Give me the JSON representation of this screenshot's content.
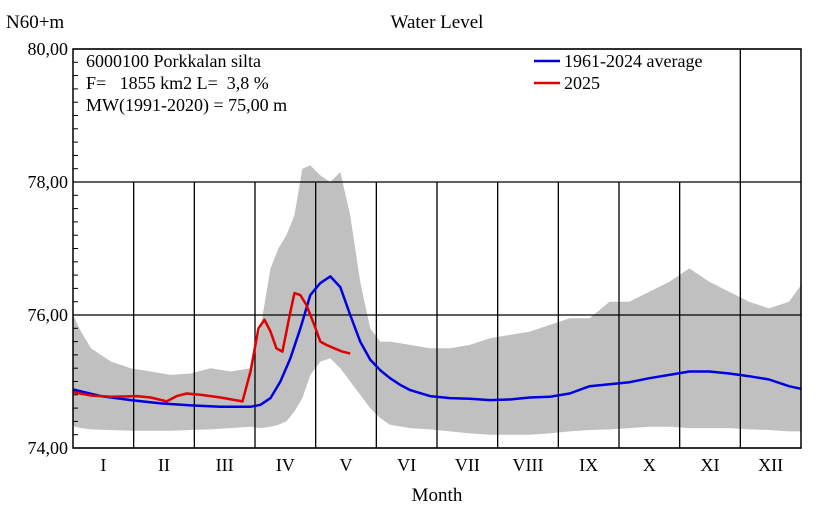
{
  "chart_data": {
    "type": "line",
    "title": "Water Level",
    "ylabel": "N60+m",
    "xlabel": "Month",
    "ylim": [
      74,
      80
    ],
    "y_ticks": [
      "74,00",
      "76,00",
      "78,00",
      "80,00"
    ],
    "months": [
      "I",
      "II",
      "III",
      "IV",
      "V",
      "VI",
      "VII",
      "VIII",
      "IX",
      "X",
      "XI",
      "XII"
    ],
    "x_unit": "day of year",
    "xlim": [
      1,
      366
    ],
    "info": [
      "6000100 Porkkalan silta",
      "F=   1855 km2 L=  3,8 %",
      "MW(1991-2020) = 75,00 m"
    ],
    "legend_position": "top-right",
    "colors": {
      "average": "#0000e0",
      "current": "#e00000",
      "range": "#c0c0c0"
    },
    "series": [
      {
        "name": "1961-2024 average",
        "x": [
          1,
          15,
          30,
          45,
          60,
          75,
          90,
          95,
          100,
          105,
          110,
          115,
          120,
          125,
          130,
          135,
          140,
          145,
          150,
          155,
          160,
          165,
          170,
          180,
          190,
          200,
          210,
          220,
          230,
          240,
          250,
          260,
          270,
          280,
          290,
          300,
          310,
          320,
          330,
          340,
          350,
          360,
          366
        ],
        "y": [
          74.88,
          74.78,
          74.72,
          74.67,
          74.64,
          74.62,
          74.62,
          74.65,
          74.75,
          75.0,
          75.35,
          75.8,
          76.3,
          76.48,
          76.58,
          76.42,
          76.0,
          75.6,
          75.33,
          75.17,
          75.05,
          74.95,
          74.87,
          74.78,
          74.75,
          74.74,
          74.72,
          74.73,
          74.76,
          74.77,
          74.82,
          74.93,
          74.96,
          74.99,
          75.05,
          75.1,
          75.15,
          75.15,
          75.12,
          75.08,
          75.03,
          74.93,
          74.89
        ]
      },
      {
        "name": "2025",
        "x": [
          1,
          10,
          20,
          33,
          40,
          48,
          53,
          58,
          65,
          75,
          86,
          90,
          94,
          97,
          100,
          103,
          106,
          110,
          112,
          115,
          118,
          122,
          125,
          128,
          132,
          136,
          140
        ],
        "y": [
          74.84,
          74.79,
          74.77,
          74.78,
          74.76,
          74.7,
          74.78,
          74.82,
          74.8,
          74.76,
          74.7,
          75.15,
          75.8,
          75.93,
          75.75,
          75.5,
          75.45,
          76.05,
          76.33,
          76.3,
          76.15,
          75.85,
          75.6,
          75.55,
          75.5,
          75.45,
          75.42
        ]
      }
    ],
    "range_band": {
      "x": [
        1,
        5,
        10,
        20,
        30,
        40,
        50,
        60,
        70,
        80,
        90,
        95,
        100,
        104,
        108,
        112,
        116,
        120,
        125,
        130,
        135,
        140,
        145,
        150,
        155,
        160,
        170,
        180,
        190,
        200,
        210,
        220,
        230,
        240,
        250,
        260,
        270,
        280,
        290,
        300,
        310,
        320,
        330,
        340,
        350,
        360,
        366
      ],
      "min": [
        74.33,
        74.3,
        74.28,
        74.27,
        74.26,
        74.26,
        74.26,
        74.27,
        74.28,
        74.3,
        74.32,
        74.3,
        74.32,
        74.35,
        74.4,
        74.55,
        74.75,
        75.1,
        75.3,
        75.35,
        75.2,
        75.0,
        74.8,
        74.6,
        74.45,
        74.35,
        74.3,
        74.28,
        74.25,
        74.22,
        74.2,
        74.2,
        74.2,
        74.22,
        74.25,
        74.27,
        74.28,
        74.3,
        74.32,
        74.32,
        74.3,
        74.3,
        74.3,
        74.28,
        74.27,
        74.25,
        74.25
      ],
      "max": [
        76.0,
        75.75,
        75.5,
        75.3,
        75.2,
        75.15,
        75.1,
        75.12,
        75.2,
        75.15,
        75.2,
        75.8,
        76.7,
        77.0,
        77.2,
        77.5,
        78.2,
        78.25,
        78.1,
        78.0,
        78.15,
        77.5,
        76.5,
        75.8,
        75.6,
        75.6,
        75.55,
        75.5,
        75.5,
        75.55,
        75.65,
        75.7,
        75.75,
        75.85,
        75.95,
        75.95,
        76.2,
        76.2,
        76.35,
        76.5,
        76.7,
        76.5,
        76.35,
        76.2,
        76.1,
        76.2,
        76.45
      ]
    }
  }
}
